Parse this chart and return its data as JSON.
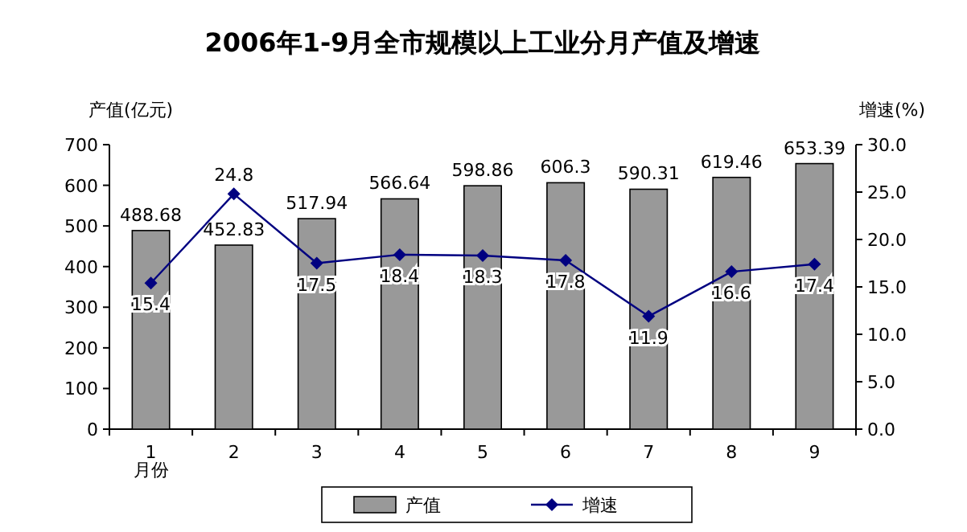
{
  "chart_data": {
    "type": "bar",
    "title": "2006年1-9月全市规模以上工业分月产值及增速",
    "xlabel": "月份",
    "ylabel": "产值(亿元)",
    "y2label": "增速(%)",
    "categories": [
      "1",
      "2",
      "3",
      "4",
      "5",
      "6",
      "7",
      "8",
      "9"
    ],
    "series": [
      {
        "name": "产值",
        "color": "#999999",
        "values": [
          488.68,
          452.83,
          517.94,
          566.64,
          598.86,
          606.3,
          590.31,
          619.46,
          653.39
        ]
      },
      {
        "name": "增速",
        "type": "line",
        "axis": "y2",
        "color": "#000080",
        "marker": "diamond",
        "values": [
          15.4,
          24.8,
          17.5,
          18.4,
          18.3,
          17.8,
          11.9,
          16.6,
          17.4
        ]
      }
    ],
    "ylim": [
      0,
      700
    ],
    "yticks": [
      0,
      100,
      200,
      300,
      400,
      500,
      600,
      700
    ],
    "y2lim": [
      0,
      30
    ],
    "y2ticks": [
      {
        "value": 0,
        "label": "0.0"
      },
      {
        "value": 5,
        "label": "5.0"
      },
      {
        "value": 10,
        "label": "10.0"
      },
      {
        "value": 15,
        "label": "15.0"
      },
      {
        "value": 20,
        "label": "20.0"
      },
      {
        "value": 25,
        "label": "25.0"
      },
      {
        "value": 30,
        "label": "30.0"
      }
    ],
    "data_labels": true,
    "legend": "bottom",
    "grid": false
  }
}
